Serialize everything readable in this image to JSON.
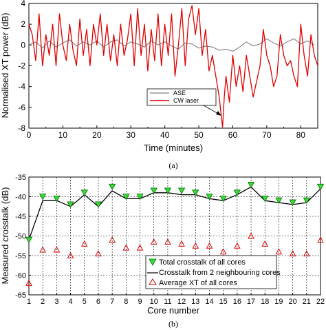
{
  "colors": {
    "ase": "#808080",
    "cw": "#e00000",
    "total": "#00a000",
    "neighbour": "#000000",
    "avg": "#e00000"
  },
  "chart_data": [
    {
      "type": "line",
      "xlabel": "Time (minutes)",
      "ylabel": "Normalised XT power (dB)",
      "xlim": [
        0,
        85
      ],
      "ylim": [
        -8,
        4
      ],
      "xticks": [
        "0",
        "10",
        "20",
        "30",
        "40",
        "50",
        "60",
        "70",
        "80"
      ],
      "yticks": [
        "4",
        "2",
        "0",
        "-2",
        "-4",
        "-6",
        "-8"
      ],
      "caption": "(a)",
      "legend_position": "center",
      "series": [
        {
          "name": "ASE",
          "x": [
            0,
            2,
            4,
            6,
            8,
            10,
            12,
            14,
            16,
            18,
            20,
            22,
            24,
            26,
            28,
            30,
            32,
            34,
            36,
            38,
            40,
            42,
            44,
            46,
            48,
            50,
            52,
            54,
            56,
            58,
            60,
            62,
            64,
            66,
            68,
            70,
            72,
            74,
            76,
            78,
            80,
            82,
            84
          ],
          "values": [
            0,
            0.3,
            -0.3,
            0.4,
            -0.2,
            0.2,
            0.5,
            -0.1,
            0.3,
            0,
            0.4,
            -0.2,
            0.3,
            0.5,
            -0.1,
            0.3,
            0.1,
            -0.2,
            0.4,
            0,
            0.3,
            -0.1,
            -0.4,
            0.2,
            0.1,
            -0.3,
            -0.1,
            -0.2,
            -0.5,
            -0.4,
            -0.6,
            -0.2,
            0.3,
            -0.1,
            0.1,
            0.6,
            0.2,
            -0.1,
            0.3,
            0.6,
            0.1,
            0.4,
            0
          ]
        },
        {
          "name": "CW laser",
          "x": [
            0,
            1,
            2,
            3,
            4,
            5,
            6,
            7,
            8,
            9,
            10,
            11,
            12,
            13,
            14,
            15,
            16,
            17,
            18,
            19,
            20,
            21,
            22,
            23,
            24,
            25,
            26,
            27,
            28,
            29,
            30,
            31,
            32,
            33,
            34,
            35,
            36,
            37,
            38,
            39,
            40,
            41,
            42,
            43,
            44,
            45,
            46,
            47,
            48,
            49,
            50,
            51,
            52,
            53,
            54,
            55,
            56,
            56.5,
            57,
            57.5,
            58,
            59,
            60,
            61,
            62,
            63,
            64,
            65,
            66,
            67,
            68,
            69,
            70,
            71,
            72,
            73,
            74,
            75,
            76,
            77,
            78,
            79,
            80,
            81,
            82,
            83,
            84,
            85
          ],
          "values": [
            2,
            1,
            -1.5,
            3,
            -2,
            1,
            -1,
            2,
            -2,
            3,
            0,
            -1.5,
            2,
            -0.5,
            -2,
            2.5,
            -1,
            1.5,
            -2,
            2,
            0,
            3,
            -1,
            2,
            -1.5,
            1,
            -2,
            2,
            -1,
            0.5,
            3,
            -2,
            3.5,
            -1,
            2,
            -2.5,
            1.5,
            -1.5,
            3,
            -2,
            2,
            -1,
            3,
            -3,
            0,
            3.5,
            -2,
            2.5,
            3.8,
            1,
            3.5,
            -1,
            1.5,
            -2.5,
            -1,
            -3,
            -5,
            -6.5,
            -7.9,
            -5,
            -3,
            -5.5,
            -1,
            -4,
            -2,
            -4.5,
            -1,
            -3,
            -5,
            -3.5,
            -2,
            1.5,
            -1,
            -2,
            -4,
            -3,
            1,
            -1,
            -2,
            -1.5,
            -3,
            -4,
            2,
            -1,
            -3,
            1,
            -1,
            -2
          ]
        }
      ]
    },
    {
      "type": "line",
      "xlabel": "Core number",
      "ylabel": "Measured crosstalk (dB)",
      "xlim": [
        1,
        22
      ],
      "ylim": [
        -65,
        -35
      ],
      "xticks": [
        "1",
        "2",
        "3",
        "4",
        "5",
        "6",
        "7",
        "8",
        "9",
        "10",
        "11",
        "12",
        "13",
        "14",
        "15",
        "16",
        "17",
        "18",
        "19",
        "20",
        "21",
        "22"
      ],
      "yticks": [
        "-35",
        "-40",
        "-45",
        "-50",
        "-55",
        "-60",
        "-65"
      ],
      "caption": "(b)",
      "legend_position": "bottom-right",
      "grid": true,
      "x": [
        1,
        2,
        3,
        4,
        5,
        6,
        7,
        8,
        9,
        10,
        11,
        12,
        13,
        14,
        15,
        16,
        17,
        18,
        19,
        20,
        21,
        22
      ],
      "series": [
        {
          "name": "Total crosstalk of all cores",
          "values": [
            -51,
            -40,
            -40.5,
            -42,
            -39,
            -42,
            -37.5,
            -40,
            -40,
            -38.5,
            -38.5,
            -38.5,
            -39,
            -40,
            -40.5,
            -39,
            -37,
            -40.5,
            -41,
            -41.5,
            -41,
            -37.5
          ]
        },
        {
          "name": "Crosstalk from 2 neighbouring cores",
          "values": [
            -51,
            -41,
            -41,
            -42.5,
            -39.5,
            -42.5,
            -38.5,
            -40.5,
            -40.5,
            -39,
            -39,
            -39.5,
            -39.5,
            -40.5,
            -41,
            -39.5,
            -37.5,
            -41,
            -41.5,
            -42,
            -41.5,
            -38
          ]
        },
        {
          "name": "Average XT of all cores",
          "values": [
            -62,
            -53.5,
            -53.5,
            -55,
            -52,
            -54.5,
            -51,
            -53,
            -53,
            -51.5,
            -51.5,
            -52,
            -52.5,
            -52.5,
            -54,
            -52.5,
            -50,
            -52,
            -54,
            -54.5,
            -54.5,
            -51
          ]
        }
      ]
    }
  ]
}
